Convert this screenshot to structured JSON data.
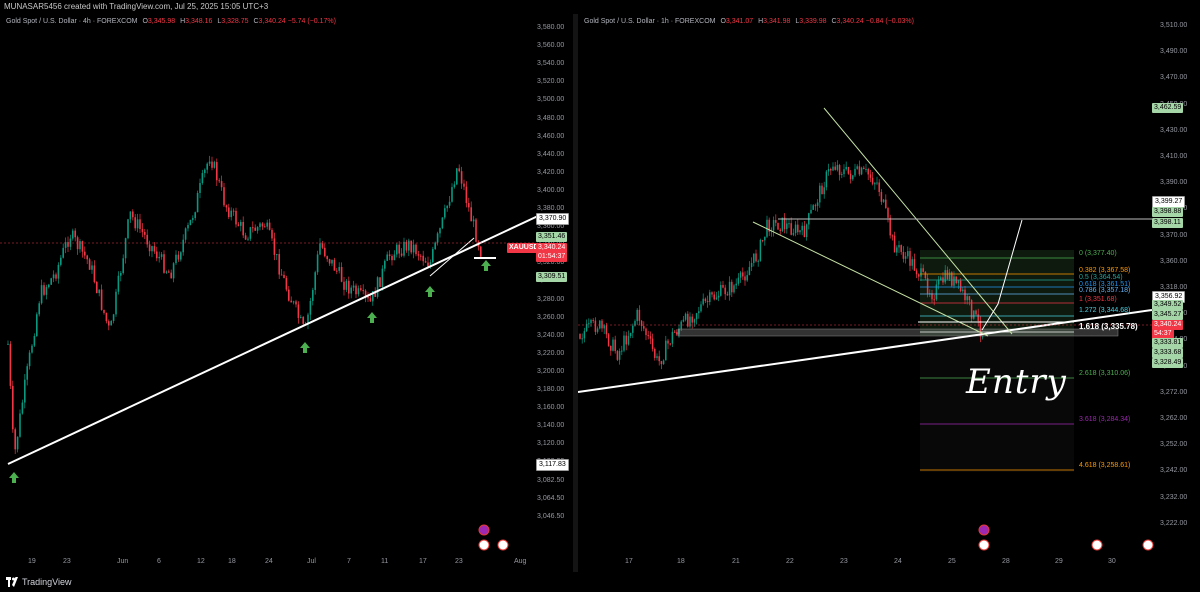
{
  "header": {
    "attribution": "MUNASAR5456 created with TradingView.com, Jul 25, 2025 15:05 UTC+3"
  },
  "left_chart": {
    "symbol": "Gold Spot / U.S. Dollar · 4h · FOREXCOM",
    "ohlc": {
      "o_label": "O",
      "o": "3,345.98",
      "h_label": "H",
      "h": "3,348.16",
      "l_label": "L",
      "l": "3,328.75",
      "c_label": "C",
      "c": "3,340.24",
      "chg": "−5.74 (−0.17%)"
    },
    "y_ticks": [
      "3,580.00",
      "3,560.00",
      "3,540.00",
      "3,520.00",
      "3,500.00",
      "3,480.00",
      "3,460.00",
      "3,440.00",
      "3,420.00",
      "3,400.00",
      "3,380.00",
      "3,360.00",
      "3,340.00",
      "3,320.00",
      "3,300.00",
      "3,280.00",
      "3,260.00",
      "3,240.00",
      "3,220.00",
      "3,200.00",
      "3,180.00",
      "3,160.00",
      "3,140.00",
      "3,120.00",
      "3,100.00",
      "3,082.50",
      "3,064.50",
      "3,046.50"
    ],
    "x_ticks": [
      "19",
      "23",
      "Jun",
      "6",
      "12",
      "18",
      "24",
      "Jul",
      "7",
      "11",
      "17",
      "23",
      "Aug"
    ],
    "price_tags": {
      "p1": "3,370.90",
      "p2": "3,351.46",
      "symbol_tag": "XAUUSD",
      "current": "3,340.24",
      "countdown": "01:54:37",
      "p3": "3,309.51",
      "p4": "3,117.83"
    }
  },
  "right_chart": {
    "symbol": "Gold Spot / U.S. Dollar · 1h · FOREXCOM",
    "ohlc": {
      "o_label": "O",
      "o": "3,341.07",
      "h_label": "H",
      "h": "3,341.98",
      "l_label": "L",
      "l": "3,339.98",
      "c_label": "C",
      "c": "3,340.24",
      "chg": "−0.84 (−0.03%)"
    },
    "y_ticks": [
      "3,510.00",
      "3,490.00",
      "3,470.00",
      "3,450.00",
      "3,430.00",
      "3,410.00",
      "3,390.00",
      "3,380.00",
      "3,370.00",
      "3,360.00",
      "3,318.00",
      "3,306.00",
      "3,294.00",
      "3,282.00",
      "3,272.00",
      "3,262.00",
      "3,252.00",
      "3,242.00",
      "3,232.00",
      "3,222.00"
    ],
    "x_ticks": [
      "17",
      "18",
      "21",
      "22",
      "23",
      "24",
      "25",
      "28",
      "29",
      "30"
    ],
    "price_tags": {
      "p1": "3,462.59",
      "p2": "3,399.27",
      "p3": "3,398.88",
      "p4": "3,398.11",
      "p5": "3,356.92",
      "p6": "3,349.52",
      "p7": "3,345.27",
      "current": "3,340.24",
      "countdown": "54:37",
      "p8": "3,333.81",
      "p9": "3,333.68",
      "p10": "3,328.49"
    },
    "fib_levels": [
      {
        "label": "0 (3,377.40)",
        "color": "#4caf50"
      },
      {
        "label": "0.382 (3,367.58)",
        "color": "#ff9800"
      },
      {
        "label": "0.5 (3,364.54)",
        "color": "#26a69a"
      },
      {
        "label": "0.618 (3,361.51)",
        "color": "#2196f3"
      },
      {
        "label": "0.786 (3,357.18)",
        "color": "#64b5f6"
      },
      {
        "label": "1 (3,351.68)",
        "color": "#f23645"
      },
      {
        "label": "1.272 (3,344.68)",
        "color": "#4dd0e1"
      },
      {
        "label": "1.618 (3,335.78)",
        "color": "#ffffff"
      },
      {
        "label": "2.618 (3,310.06)",
        "color": "#4caf50"
      },
      {
        "label": "3.618 (3,284.34)",
        "color": "#9c27b0"
      },
      {
        "label": "4.618 (3,258.61)",
        "color": "#ff9800"
      }
    ],
    "annotation": "Entry"
  },
  "footer": {
    "brand": "TradingView"
  },
  "colors": {
    "up": "#089981",
    "down": "#f23645",
    "bg": "#000000",
    "green_tag": "#a5d6a7",
    "red_tag": "#f23645"
  }
}
